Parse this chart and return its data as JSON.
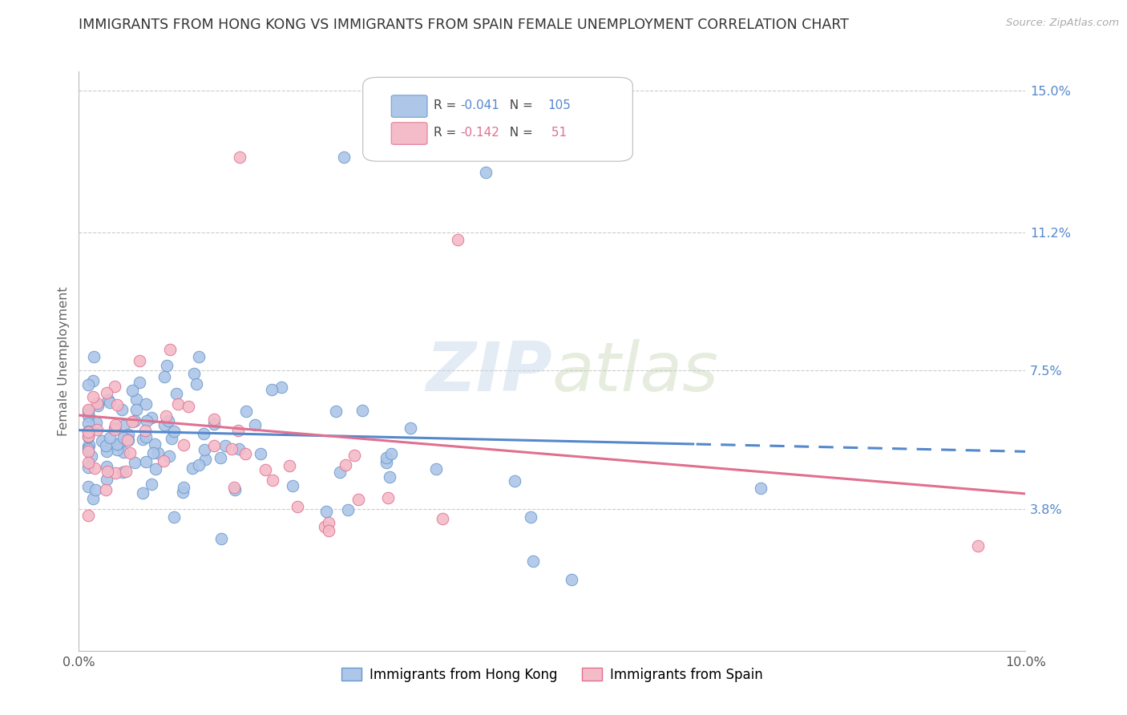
{
  "title": "IMMIGRANTS FROM HONG KONG VS IMMIGRANTS FROM SPAIN FEMALE UNEMPLOYMENT CORRELATION CHART",
  "source": "Source: ZipAtlas.com",
  "ylabel": "Female Unemployment",
  "x_min": 0.0,
  "x_max": 0.1,
  "y_min": 0.0,
  "y_max": 0.155,
  "y_tick_labels_right": [
    "3.8%",
    "7.5%",
    "11.2%",
    "15.0%"
  ],
  "y_tick_vals_right": [
    0.038,
    0.075,
    0.112,
    0.15
  ],
  "hk_color": "#aec6e8",
  "hk_edge_color": "#6699cc",
  "spain_color": "#f4bbc8",
  "spain_edge_color": "#e07090",
  "hk_R": -0.041,
  "hk_N": 105,
  "spain_R": -0.142,
  "spain_N": 51,
  "trend_hk_color": "#5588cc",
  "trend_spain_color": "#e07090",
  "watermark_zip": "ZIP",
  "watermark_atlas": "atlas",
  "legend_label_hk": "Immigrants from Hong Kong",
  "legend_label_spain": "Immigrants from Spain",
  "background_color": "#ffffff",
  "grid_color": "#cccccc",
  "title_color": "#333333",
  "right_tick_color": "#5588cc",
  "title_fontsize": 12.5
}
